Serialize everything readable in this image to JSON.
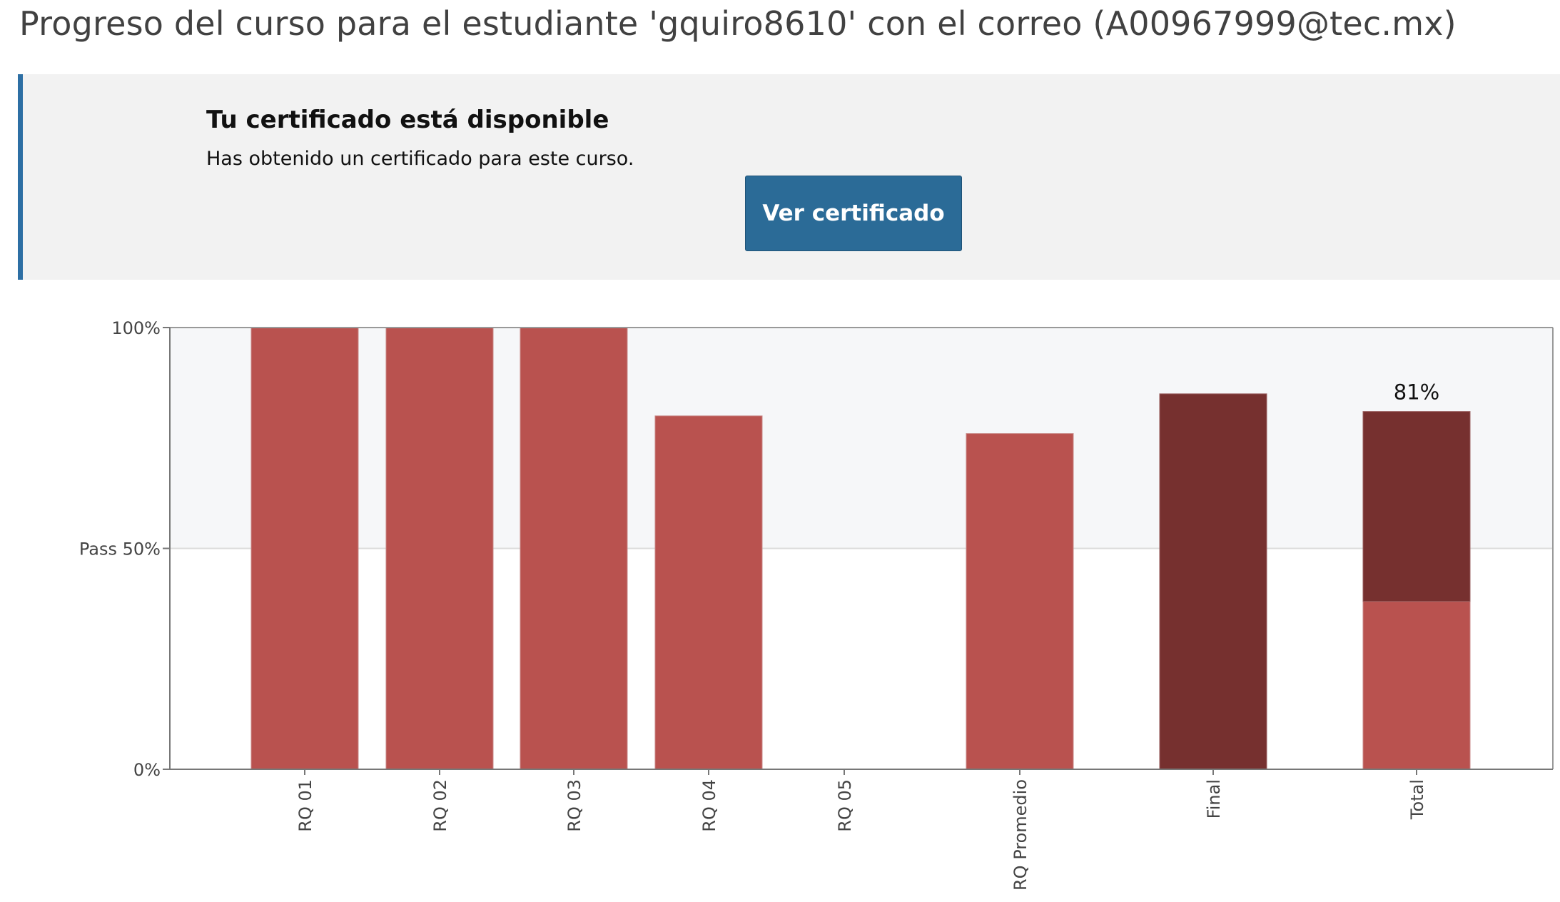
{
  "header": {
    "title": "Progreso del curso para el estudiante 'gquiro8610' con el correo (A00967999@tec.mx)"
  },
  "certificate": {
    "heading": "Tu certificado está disponible",
    "description": "Has obtenido un certificado para este curso.",
    "button_label": "Ver certificado"
  },
  "colors": {
    "banner_accent": "#2d6fa4",
    "button": "#2b6b97",
    "bar": "#b9524f",
    "bar_dark": "#76302f",
    "pass_band": "#f6f7f9"
  },
  "chart_data": {
    "type": "bar",
    "categories": [
      "RQ 01",
      "RQ 02",
      "RQ 03",
      "RQ 04",
      "RQ 05",
      "RQ Promedio",
      "Final",
      "Total"
    ],
    "values": [
      100,
      100,
      100,
      80,
      0,
      76,
      85,
      81
    ],
    "total_breakdown": {
      "lower": 38,
      "upper": 43
    },
    "total_label": "81%",
    "ylim": [
      0,
      100
    ],
    "yticks": [
      {
        "value": 0,
        "label": "0%"
      },
      {
        "value": 50,
        "label": "Pass 50%"
      },
      {
        "value": 100,
        "label": "100%"
      }
    ],
    "pass_threshold": 50,
    "dark_categories": [
      "Final"
    ]
  }
}
